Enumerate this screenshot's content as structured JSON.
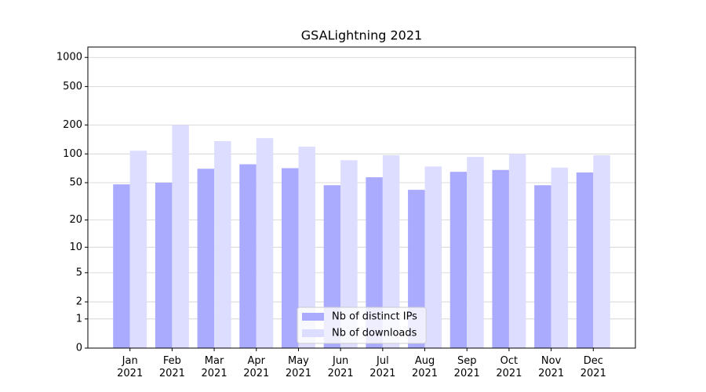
{
  "chart_data": {
    "type": "bar",
    "title": "GSALightning 2021",
    "categories": [
      "Jan\n2021",
      "Feb\n2021",
      "Mar\n2021",
      "Apr\n2021",
      "May\n2021",
      "Jun\n2021",
      "Jul\n2021",
      "Aug\n2021",
      "Sep\n2021",
      "Oct\n2021",
      "Nov\n2021",
      "Dec\n2021"
    ],
    "series": [
      {
        "name": "Nb of distinct IPs",
        "color": "#aaaaff",
        "values": [
          48,
          50,
          70,
          78,
          71,
          47,
          57,
          42,
          65,
          68,
          47,
          64
        ]
      },
      {
        "name": "Nb of downloads",
        "color": "#ddddff",
        "values": [
          108,
          200,
          136,
          146,
          119,
          86,
          97,
          74,
          93,
          100,
          72,
          97
        ]
      }
    ],
    "yscale": "log1p",
    "ylim": [
      0,
      1280
    ],
    "yticks": [
      0,
      1,
      2,
      5,
      10,
      20,
      50,
      100,
      200,
      500,
      1000
    ],
    "grid": true,
    "legend": "lower center"
  }
}
